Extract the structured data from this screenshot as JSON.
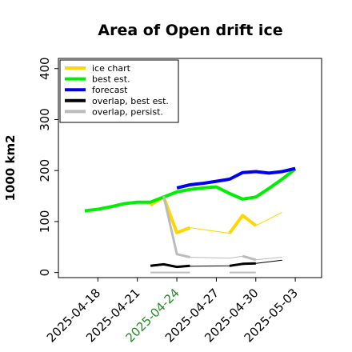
{
  "chart_data": {
    "type": "line",
    "title": "Area of Open drift ice",
    "ylabel": "1000 km2",
    "xlabel": "",
    "ylim": [
      -10,
      420
    ],
    "yticks": [
      0,
      100,
      200,
      300,
      400
    ],
    "xlim": [
      "2025-04-15",
      "2025-05-05"
    ],
    "xticks": [
      {
        "date": "2025-04-18",
        "label": "2025-04-18",
        "color": "#000000"
      },
      {
        "date": "2025-04-21",
        "label": "2025-04-21",
        "color": "#000000"
      },
      {
        "date": "2025-04-24",
        "label": "2025-04-24",
        "color": "#228b22"
      },
      {
        "date": "2025-04-27",
        "label": "2025-04-27",
        "color": "#000000"
      },
      {
        "date": "2025-04-30",
        "label": "2025-04-30",
        "color": "#000000"
      },
      {
        "date": "2025-05-03",
        "label": "2025-05-03",
        "color": "#000000"
      }
    ],
    "legend_position": "top-left",
    "grid": false,
    "series": [
      {
        "name": "ice chart",
        "color": "#ffd700",
        "width": 1,
        "points": [
          [
            "2025-04-22",
            132
          ],
          [
            "2025-04-23",
            148
          ],
          [
            "2025-04-24",
            78
          ],
          [
            "2025-04-25",
            88
          ],
          [
            "2025-04-28",
            77
          ],
          [
            "2025-04-29",
            112
          ],
          [
            "2025-04-30",
            92
          ],
          [
            "2025-05-02",
            118
          ]
        ]
      },
      {
        "name": "ice chart (thick)",
        "color": "#ffd700",
        "width": 4,
        "in_legend": false,
        "points": [
          [
            "2025-04-22",
            132
          ],
          [
            "2025-04-23",
            148
          ],
          [
            "2025-04-24",
            78
          ],
          [
            "2025-04-25",
            88
          ]
        ]
      },
      {
        "name": "ice chart (thick 2)",
        "color": "#ffd700",
        "width": 4,
        "in_legend": false,
        "points": [
          [
            "2025-04-28",
            77
          ],
          [
            "2025-04-29",
            112
          ],
          [
            "2025-04-30",
            92
          ]
        ]
      },
      {
        "name": "best est.",
        "color": "#00ee00",
        "width": 4,
        "points": [
          [
            "2025-04-17",
            121
          ],
          [
            "2025-04-18",
            124
          ],
          [
            "2025-04-19",
            129
          ],
          [
            "2025-04-20",
            135
          ],
          [
            "2025-04-21",
            138
          ],
          [
            "2025-04-22",
            138
          ],
          [
            "2025-04-23",
            148
          ],
          [
            "2025-04-24",
            158
          ],
          [
            "2025-04-25",
            163
          ],
          [
            "2025-04-26",
            166
          ],
          [
            "2025-04-27",
            168
          ],
          [
            "2025-04-28",
            155
          ],
          [
            "2025-04-29",
            144
          ],
          [
            "2025-04-30",
            148
          ],
          [
            "2025-05-01",
            165
          ],
          [
            "2025-05-02",
            183
          ],
          [
            "2025-05-03",
            203
          ]
        ]
      },
      {
        "name": "forecast",
        "color": "#0000ee",
        "width": 4,
        "points": [
          [
            "2025-04-24",
            166
          ],
          [
            "2025-04-25",
            172
          ],
          [
            "2025-04-26",
            175
          ],
          [
            "2025-04-27",
            179
          ],
          [
            "2025-04-28",
            183
          ],
          [
            "2025-04-29",
            196
          ],
          [
            "2025-04-30",
            198
          ],
          [
            "2025-05-01",
            195
          ],
          [
            "2025-05-02",
            198
          ],
          [
            "2025-05-03",
            204
          ]
        ]
      },
      {
        "name": "overlap, best est.",
        "color": "#000000",
        "width": 3,
        "points": [
          [
            "2025-04-22",
            13
          ],
          [
            "2025-04-23",
            16
          ],
          [
            "2025-04-24",
            11
          ],
          [
            "2025-04-25",
            13
          ]
        ]
      },
      {
        "name": "overlap, best est. (2)",
        "color": "#000000",
        "width": 3,
        "in_legend": false,
        "points": [
          [
            "2025-04-28",
            13
          ],
          [
            "2025-04-29",
            17
          ],
          [
            "2025-04-30",
            18
          ]
        ]
      },
      {
        "name": "overlap, best est. (3)",
        "color": "#000000",
        "width": 1,
        "in_legend": false,
        "points": [
          [
            "2025-04-24",
            12
          ],
          [
            "2025-04-28",
            13
          ],
          [
            "2025-04-30",
            18
          ],
          [
            "2025-05-02",
            24
          ]
        ]
      },
      {
        "name": "overlap, persist.",
        "color": "#bbbbbb",
        "width": 3,
        "points": [
          [
            "2025-04-23",
            150
          ],
          [
            "2025-04-24",
            36
          ],
          [
            "2025-04-25",
            30
          ]
        ]
      },
      {
        "name": "overlap, persist. (2)",
        "color": "#bbbbbb",
        "width": 1,
        "in_legend": false,
        "points": [
          [
            "2025-04-25",
            30
          ],
          [
            "2025-04-28",
            28
          ],
          [
            "2025-04-29",
            32
          ],
          [
            "2025-04-30",
            25
          ],
          [
            "2025-05-02",
            30
          ]
        ]
      },
      {
        "name": "overlap, persist. (3)",
        "color": "#bbbbbb",
        "width": 3,
        "in_legend": false,
        "points": [
          [
            "2025-04-29",
            32
          ],
          [
            "2025-04-30",
            25
          ]
        ]
      },
      {
        "name": "overlap, persist. (4)",
        "color": "#bbbbbb",
        "width": 2,
        "in_legend": false,
        "points": [
          [
            "2025-04-22",
            0
          ],
          [
            "2025-04-25",
            0
          ]
        ]
      },
      {
        "name": "overlap, persist. (5)",
        "color": "#bbbbbb",
        "width": 2,
        "in_legend": false,
        "points": [
          [
            "2025-04-28",
            0
          ],
          [
            "2025-04-30",
            0
          ]
        ]
      }
    ]
  }
}
